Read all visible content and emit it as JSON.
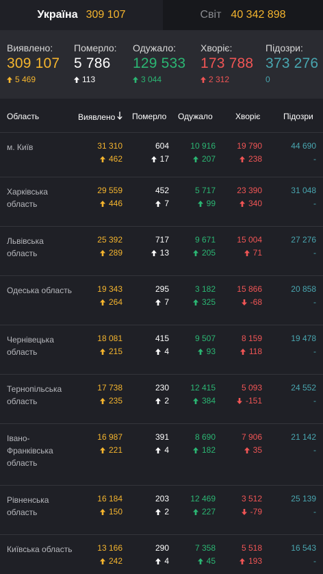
{
  "tabs": [
    {
      "name": "Україна",
      "value": "309 107"
    },
    {
      "name": "Світ",
      "value": "40 342 898"
    }
  ],
  "summary": [
    {
      "label": "Виявлено:",
      "value": "309 107",
      "delta": "5 469",
      "color": "yellow",
      "arrow": "up"
    },
    {
      "label": "Померло:",
      "value": "5 786",
      "delta": "113",
      "color": "white",
      "arrow": "up"
    },
    {
      "label": "Одужало:",
      "value": "129 533",
      "delta": "3 044",
      "color": "green",
      "arrow": "up"
    },
    {
      "label": "Хворіє:",
      "value": "173 788",
      "delta": "2 312",
      "color": "red",
      "arrow": "up"
    },
    {
      "label": "Підозри:",
      "value": "373 276",
      "delta": "0",
      "color": "teal",
      "arrow": "none"
    }
  ],
  "table": {
    "headers": [
      "Область",
      "Виявлено",
      "Померло",
      "Одужало",
      "Хворіє",
      "Підозри"
    ],
    "sort_icon": "arrow-down-icon",
    "rows": [
      {
        "region": "м. Київ",
        "cases": "31 310",
        "cases_d": "462",
        "deaths": "604",
        "deaths_d": "17",
        "rec": "10 916",
        "rec_d": "207",
        "sick": "19 790",
        "sick_d": "238",
        "sick_dir": "up",
        "susp": "44 690",
        "susp_d": "-"
      },
      {
        "region": "Харківська область",
        "cases": "29 559",
        "cases_d": "446",
        "deaths": "452",
        "deaths_d": "7",
        "rec": "5 717",
        "rec_d": "99",
        "sick": "23 390",
        "sick_d": "340",
        "sick_dir": "up",
        "susp": "31 048",
        "susp_d": "-"
      },
      {
        "region": "Львівська область",
        "cases": "25 392",
        "cases_d": "289",
        "deaths": "717",
        "deaths_d": "13",
        "rec": "9 671",
        "rec_d": "205",
        "sick": "15 004",
        "sick_d": "71",
        "sick_dir": "up",
        "susp": "27 276",
        "susp_d": "-"
      },
      {
        "region": "Одеська область",
        "cases": "19 343",
        "cases_d": "264",
        "deaths": "295",
        "deaths_d": "7",
        "rec": "3 182",
        "rec_d": "325",
        "sick": "15 866",
        "sick_d": "-68",
        "sick_dir": "down",
        "susp": "20 858",
        "susp_d": "-"
      },
      {
        "region": "Чернівецька область",
        "cases": "18 081",
        "cases_d": "215",
        "deaths": "415",
        "deaths_d": "4",
        "rec": "9 507",
        "rec_d": "93",
        "sick": "8 159",
        "sick_d": "118",
        "sick_dir": "up",
        "susp": "19 478",
        "susp_d": "-"
      },
      {
        "region": "Тернопільська область",
        "cases": "17 738",
        "cases_d": "235",
        "deaths": "230",
        "deaths_d": "2",
        "rec": "12 415",
        "rec_d": "384",
        "sick": "5 093",
        "sick_d": "-151",
        "sick_dir": "down",
        "susp": "24 552",
        "susp_d": "-"
      },
      {
        "region": "Івано-Франківська область",
        "cases": "16 987",
        "cases_d": "221",
        "deaths": "391",
        "deaths_d": "4",
        "rec": "8 690",
        "rec_d": "182",
        "sick": "7 906",
        "sick_d": "35",
        "sick_dir": "up",
        "susp": "21 142",
        "susp_d": "-"
      },
      {
        "region": "Рівненська область",
        "cases": "16 184",
        "cases_d": "150",
        "deaths": "203",
        "deaths_d": "2",
        "rec": "12 469",
        "rec_d": "227",
        "sick": "3 512",
        "sick_d": "-79",
        "sick_dir": "down",
        "susp": "25 139",
        "susp_d": "-"
      },
      {
        "region": "Київська область",
        "cases": "13 166",
        "cases_d": "242",
        "deaths": "290",
        "deaths_d": "4",
        "rec": "7 358",
        "rec_d": "45",
        "sick": "5 518",
        "sick_d": "193",
        "sick_dir": "up",
        "susp": "16 543",
        "susp_d": "-"
      }
    ]
  },
  "colors": {
    "yellow": "#f5b52e",
    "white": "#ffffff",
    "green": "#2bb673",
    "red": "#f15555",
    "teal": "#49a6b0"
  }
}
